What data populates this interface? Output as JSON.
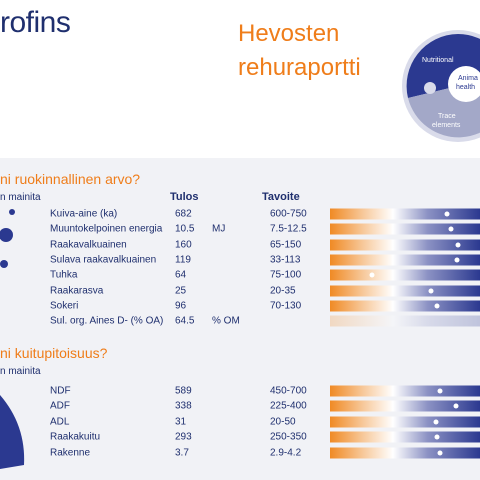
{
  "header": {
    "logo": "rofins",
    "title": [
      "Hevosten",
      "rehuraportti"
    ],
    "puzzle": [
      "Nutritional",
      "Anima",
      "health",
      "Trace",
      "elements"
    ]
  },
  "sections": [
    {
      "heading": "ni ruokinnallinen arvo?",
      "note": "n mainita",
      "columns": [
        "Tulos",
        "Tavoite"
      ],
      "rows": [
        {
          "name": "Kuiva-aine (ka)",
          "result": 682,
          "target": "600-750"
        },
        {
          "name": "Muuntokelpoinen energia",
          "result": 10.5,
          "unit": "MJ",
          "target": "7.5-12.5"
        },
        {
          "name": "Raakavalkuainen",
          "result": 160,
          "target": "65-150"
        },
        {
          "name": "Sulava raakavalkuainen",
          "result": 119,
          "target": "33-113"
        },
        {
          "name": "Tuhka",
          "result": 64,
          "target": "75-100"
        },
        {
          "name": "Raakarasva",
          "result": 25,
          "target": "20-35"
        },
        {
          "name": "Sokeri",
          "result": 96,
          "target": "70-130"
        },
        {
          "name": "Sul. org. Aines D- (% OA)",
          "result": 64.5,
          "unit": "% OM"
        }
      ]
    },
    {
      "heading": "ni kuitupitoisuus?",
      "note": "n mainita",
      "rows": [
        {
          "name": "NDF",
          "result": 589,
          "target": "450-700"
        },
        {
          "name": "ADF",
          "result": 338,
          "target": "225-400"
        },
        {
          "name": "ADL",
          "result": 31,
          "target": "20-50"
        },
        {
          "name": "Raakakuitu",
          "result": 293,
          "target": "250-350"
        },
        {
          "name": "Rakenne",
          "result": 3.7,
          "target": "2.9-4.2"
        }
      ]
    }
  ]
}
